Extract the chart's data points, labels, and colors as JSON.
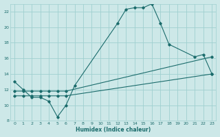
{
  "xlabel": "Humidex (Indice chaleur)",
  "background_color": "#cde8e8",
  "grid_color": "#9fcfcf",
  "line_color": "#1a6b6b",
  "xlim": [
    -0.5,
    23.5
  ],
  "ylim": [
    8,
    23
  ],
  "xticks": [
    0,
    1,
    2,
    3,
    4,
    5,
    6,
    7,
    8,
    9,
    10,
    11,
    12,
    13,
    14,
    15,
    16,
    17,
    18,
    19,
    20,
    21,
    22,
    23
  ],
  "yticks": [
    8,
    10,
    12,
    14,
    16,
    18,
    20,
    22
  ],
  "series": [
    {
      "x": [
        0,
        1,
        2,
        3,
        4,
        5,
        6,
        7,
        12,
        13,
        14,
        15,
        16,
        17,
        18,
        21,
        22,
        23
      ],
      "y": [
        13,
        12,
        11,
        11,
        10.5,
        8.5,
        10,
        12.5,
        20.5,
        22.3,
        22.5,
        22.5,
        23,
        20.5,
        17.8,
        16.2,
        16.5,
        14
      ]
    },
    {
      "x": [
        0,
        1,
        2,
        3,
        4,
        5,
        6,
        23
      ],
      "y": [
        11.2,
        11.2,
        11.2,
        11.2,
        11.2,
        11.2,
        11.2,
        14.0
      ]
    },
    {
      "x": [
        0,
        1,
        2,
        3,
        4,
        5,
        6,
        23
      ],
      "y": [
        11.8,
        11.8,
        11.8,
        11.8,
        11.8,
        11.8,
        11.8,
        16.2
      ]
    }
  ]
}
